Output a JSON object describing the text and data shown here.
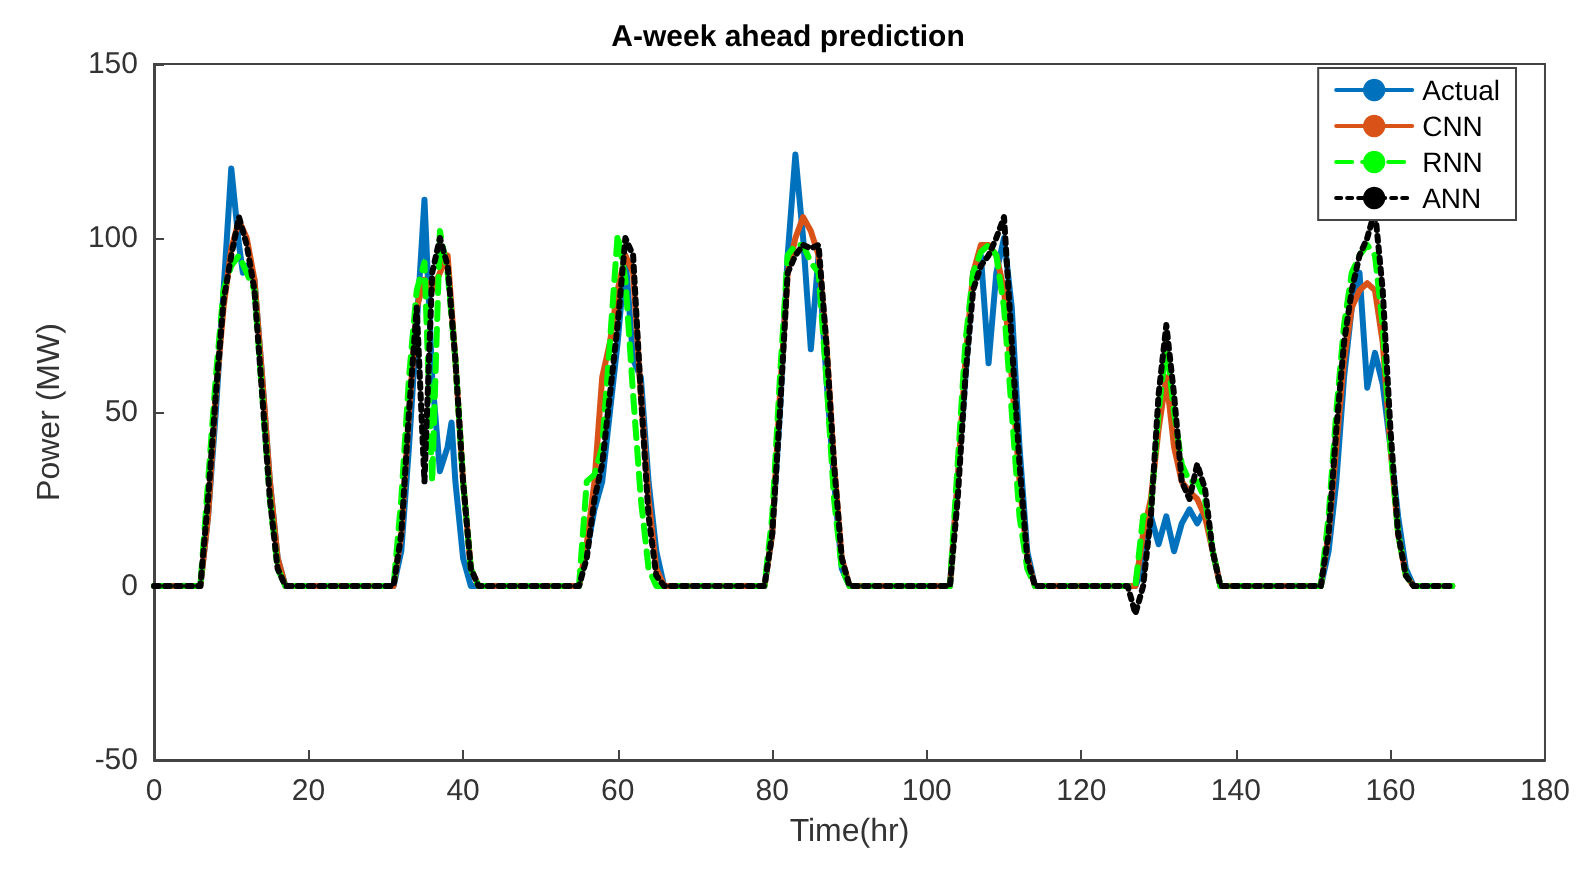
{
  "chart_data": {
    "type": "line",
    "title": "A-week ahead prediction",
    "xlabel": "Time(hr)",
    "ylabel": "Power (MW)",
    "xlim": [
      0,
      180
    ],
    "xticks": [
      0,
      20,
      40,
      60,
      80,
      100,
      120,
      140,
      160,
      180
    ],
    "ylim": [
      -50,
      150
    ],
    "yticks": [
      -50,
      0,
      50,
      100,
      150
    ],
    "grid": false,
    "legend": "top right",
    "marker": "none",
    "series": [
      {
        "name": "Actual",
        "color": "#0072bd",
        "line_style": "solid",
        "x": [
          0,
          6,
          7,
          8,
          9,
          10,
          11,
          11.5,
          12,
          13,
          14,
          15,
          16,
          17,
          31,
          32,
          33,
          34,
          35,
          36,
          37,
          38,
          38.5,
          39,
          40,
          41,
          55,
          56,
          57,
          58,
          59,
          60,
          61,
          62,
          63,
          64,
          65,
          66,
          79,
          80,
          81,
          82,
          83,
          84,
          85,
          86,
          87,
          88,
          89,
          90,
          103,
          104,
          105,
          106,
          107,
          108,
          109,
          110,
          111,
          112,
          113,
          114,
          127,
          128,
          129,
          130,
          131,
          132,
          133,
          134,
          135,
          136,
          137,
          138,
          151,
          152,
          153,
          154,
          155,
          156,
          157,
          158,
          159,
          160,
          161,
          162,
          163,
          168
        ],
        "values": [
          0,
          0,
          20,
          50,
          85,
          120,
          98,
          90,
          92,
          88,
          60,
          30,
          8,
          0,
          0,
          10,
          40,
          75,
          111,
          60,
          33,
          40,
          47,
          30,
          8,
          0,
          0,
          10,
          22,
          30,
          50,
          70,
          95,
          65,
          60,
          30,
          10,
          0,
          0,
          15,
          50,
          95,
          124,
          100,
          68,
          95,
          60,
          30,
          5,
          0,
          0,
          30,
          60,
          90,
          95,
          64,
          90,
          100,
          80,
          40,
          10,
          0,
          0,
          5,
          20,
          12,
          20,
          10,
          18,
          22,
          18,
          22,
          10,
          0,
          0,
          10,
          30,
          60,
          80,
          90,
          57,
          67,
          58,
          40,
          20,
          5,
          0,
          0
        ]
      },
      {
        "name": "CNN",
        "color": "#d95319",
        "line_style": "solid",
        "x": [
          0,
          6,
          7,
          8,
          9,
          10,
          11,
          12,
          13,
          14,
          15,
          16,
          17,
          31,
          32,
          33,
          34,
          35,
          36,
          37,
          38,
          39,
          40,
          41,
          42,
          55,
          56,
          57,
          58,
          59,
          60,
          61,
          62,
          63,
          64,
          65,
          66,
          79,
          80,
          81,
          82,
          83,
          84,
          85,
          86,
          87,
          88,
          89,
          90,
          103,
          104,
          105,
          106,
          107,
          108,
          109,
          110,
          111,
          112,
          113,
          114,
          127,
          128,
          129,
          130,
          131,
          132,
          133,
          134,
          135,
          136,
          137,
          138,
          151,
          152,
          153,
          154,
          155,
          156,
          157,
          158,
          159,
          160,
          161,
          162,
          163,
          168
        ],
        "values": [
          0,
          0,
          20,
          55,
          80,
          97,
          105,
          100,
          88,
          60,
          30,
          8,
          0,
          0,
          15,
          50,
          80,
          88,
          85,
          90,
          95,
          65,
          30,
          5,
          0,
          0,
          12,
          30,
          60,
          70,
          85,
          95,
          90,
          55,
          25,
          5,
          0,
          0,
          15,
          55,
          90,
          100,
          106,
          102,
          95,
          70,
          35,
          8,
          0,
          0,
          30,
          65,
          90,
          98,
          98,
          95,
          85,
          60,
          30,
          8,
          0,
          0,
          15,
          25,
          45,
          60,
          40,
          30,
          27,
          25,
          20,
          10,
          0,
          0,
          15,
          40,
          65,
          80,
          85,
          87,
          85,
          70,
          40,
          15,
          3,
          0,
          0
        ]
      },
      {
        "name": "RNN",
        "color": "#00ff00",
        "line_style": "dashed",
        "x": [
          0,
          6,
          7,
          8,
          9,
          10,
          11,
          12,
          13,
          14,
          15,
          16,
          17,
          31,
          32,
          33,
          34,
          35,
          36,
          37,
          38,
          39,
          40,
          41,
          42,
          55,
          56,
          57,
          58,
          59,
          60,
          61,
          62,
          63,
          64,
          65,
          79,
          80,
          81,
          82,
          83,
          84,
          85,
          86,
          87,
          88,
          89,
          90,
          103,
          104,
          105,
          106,
          107,
          108,
          109,
          110,
          111,
          112,
          113,
          114,
          127,
          128,
          129,
          130,
          131,
          132,
          133,
          134,
          135,
          136,
          137,
          138,
          151,
          152,
          153,
          154,
          155,
          156,
          157,
          158,
          159,
          160,
          161,
          162,
          163,
          168
        ],
        "values": [
          0,
          0,
          30,
          60,
          85,
          92,
          95,
          90,
          85,
          55,
          25,
          5,
          0,
          0,
          25,
          60,
          85,
          93,
          30,
          102,
          90,
          65,
          30,
          5,
          0,
          0,
          30,
          32,
          40,
          70,
          101,
          88,
          55,
          25,
          5,
          0,
          0,
          20,
          60,
          95,
          98,
          98,
          93,
          90,
          60,
          25,
          5,
          0,
          0,
          35,
          70,
          90,
          96,
          98,
          95,
          80,
          50,
          20,
          5,
          0,
          0,
          20,
          22,
          50,
          70,
          50,
          35,
          30,
          30,
          25,
          10,
          0,
          0,
          20,
          50,
          75,
          90,
          95,
          98,
          95,
          75,
          40,
          15,
          3,
          0,
          0
        ]
      },
      {
        "name": "ANN",
        "color": "#000000",
        "line_style": "dotted",
        "x": [
          0,
          6,
          7,
          8,
          9,
          10,
          11,
          12,
          13,
          14,
          15,
          16,
          17,
          31,
          32,
          33,
          34,
          35,
          36,
          37,
          38,
          39,
          40,
          41,
          42,
          55,
          56,
          57,
          58,
          59,
          60,
          61,
          62,
          63,
          64,
          65,
          66,
          79,
          80,
          81,
          82,
          83,
          84,
          85,
          86,
          87,
          88,
          89,
          90,
          103,
          104,
          105,
          106,
          107,
          108,
          109,
          110,
          111,
          112,
          113,
          114,
          126,
          127,
          128,
          129,
          130,
          131,
          132,
          133,
          134,
          135,
          136,
          137,
          138,
          151,
          152,
          153,
          154,
          155,
          156,
          157,
          158,
          159,
          160,
          161,
          162,
          163,
          168
        ],
        "values": [
          0,
          0,
          25,
          55,
          82,
          95,
          106,
          98,
          85,
          55,
          25,
          5,
          0,
          0,
          15,
          50,
          80,
          30,
          90,
          100,
          92,
          65,
          30,
          5,
          0,
          0,
          8,
          25,
          35,
          55,
          75,
          100,
          95,
          55,
          20,
          3,
          0,
          0,
          15,
          50,
          90,
          95,
          98,
          97,
          98,
          70,
          35,
          8,
          0,
          0,
          25,
          60,
          85,
          92,
          95,
          100,
          106,
          70,
          35,
          8,
          0,
          0,
          -8,
          0,
          20,
          55,
          75,
          55,
          30,
          25,
          35,
          28,
          10,
          0,
          0,
          15,
          45,
          70,
          85,
          95,
          100,
          108,
          85,
          45,
          15,
          3,
          0,
          0
        ]
      }
    ]
  }
}
